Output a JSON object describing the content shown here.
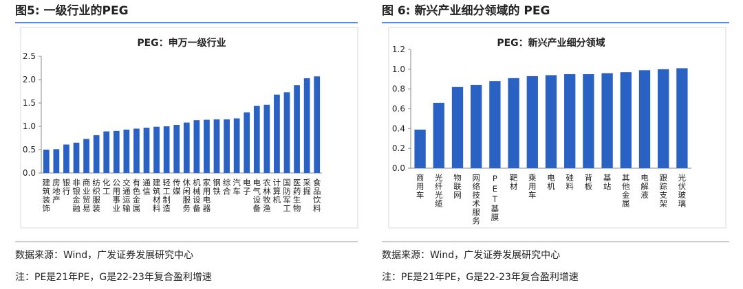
{
  "panels": [
    {
      "heading": "图5:  一级行业的PEG",
      "source": "数据来源：Wind，广发证券发展研究中心",
      "note": "注：PE是21年PE，G是22-23年复合盈利增速"
    },
    {
      "heading": "图 6:  新兴产业细分领域的 PEG",
      "source": "数据来源：Wind，广发证券发展研究中心",
      "note": "注：PE是21年PE，G是22-23年复合盈利增速"
    }
  ],
  "chart_data": [
    {
      "type": "bar",
      "title": "PEG：申万一级行业",
      "color": "#2a62c4",
      "categories": [
        "建筑装饰",
        "房地产",
        "银行",
        "非银金融",
        "商业贸易",
        "纺织服装",
        "化工",
        "公用事业",
        "交通运输",
        "有色金属",
        "通信",
        "建筑材料",
        "轻工制造",
        "传媒",
        "休闲服务",
        "机械设备",
        "家用电器",
        "钢铁",
        "综合",
        "汽车",
        "电子",
        "电气设备",
        "农林牧渔",
        "计算机",
        "国防军工",
        "医药生物",
        "采掘",
        "食品饮料"
      ],
      "values": [
        0.5,
        0.51,
        0.61,
        0.65,
        0.73,
        0.81,
        0.89,
        0.9,
        0.93,
        0.95,
        0.97,
        0.99,
        1.0,
        1.03,
        1.08,
        1.13,
        1.14,
        1.15,
        1.15,
        1.17,
        1.3,
        1.44,
        1.46,
        1.68,
        1.73,
        1.88,
        2.03,
        2.07
      ],
      "ylim": [
        0,
        2.5
      ],
      "yticks": [
        {
          "value": 0,
          "label": "0.0"
        },
        0.5,
        {
          "value": 1,
          "label": "1.0"
        },
        1.5,
        {
          "value": 2,
          "label": "2.0"
        },
        2.5
      ]
    },
    {
      "type": "bar",
      "title": "PEG：新兴产业细分领域",
      "color": "#2a62c4",
      "categories": [
        "商用车",
        "光纤光缆",
        "物联网",
        "网络技术服务",
        "PET基膜",
        "靶材",
        "乘用车",
        "电机",
        "硅料",
        "背板",
        "基站",
        "其他金属",
        "电解液",
        "跟踪支架",
        "光伏玻璃"
      ],
      "values": [
        0.39,
        0.66,
        0.82,
        0.84,
        0.88,
        0.91,
        0.93,
        0.94,
        0.95,
        0.95,
        0.96,
        0.97,
        0.99,
        1.0,
        1.01
      ],
      "ylim": [
        0,
        1.2
      ],
      "yticks": [
        {
          "value": 0,
          "label": "0.0"
        },
        0.2,
        0.4,
        0.6,
        0.8,
        {
          "value": 1,
          "label": "1.0"
        },
        1.2
      ]
    }
  ]
}
